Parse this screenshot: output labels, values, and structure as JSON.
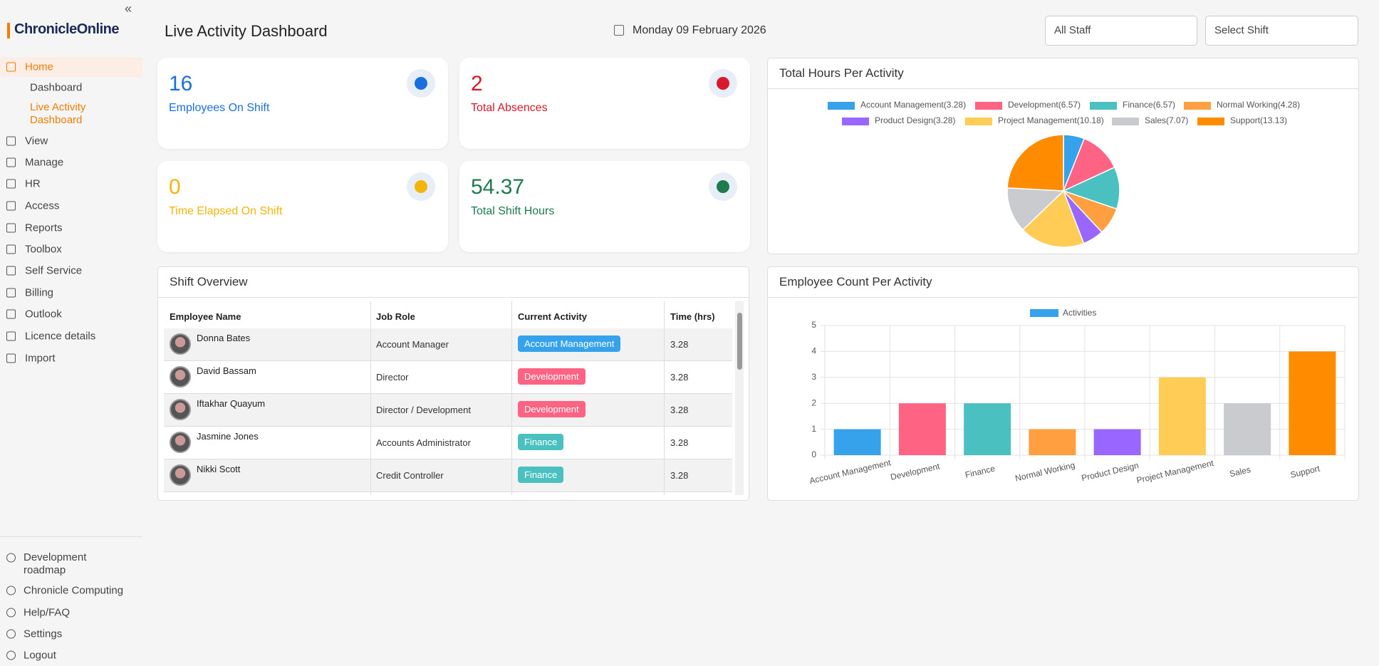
{
  "sidebar": {
    "logo": "ChronicleOnline",
    "nav": [
      "Home",
      "View",
      "Manage",
      "HR",
      "Access",
      "Reports",
      "Toolbox",
      "Self Service",
      "Billing",
      "Outlook",
      "Licence details",
      "Import"
    ],
    "home_children": [
      "Dashboard",
      "Live Activity Dashboard"
    ],
    "bottom": [
      "Development roadmap",
      "Chronicle Computing",
      "Help/FAQ",
      "Settings",
      "Logout"
    ]
  },
  "header": {
    "title": "Live Activity Dashboard",
    "date": "Monday 09 February 2026",
    "filters": [
      "All Staff",
      "Select Shift"
    ]
  },
  "cards": [
    {
      "value": 16,
      "label": "Employees On Shift"
    },
    {
      "value": 2,
      "label": "Total Absences"
    },
    {
      "value": 0,
      "label": "Time Elapsed On Shift"
    },
    {
      "value": 54.37,
      "label": "Total Shift Hours"
    }
  ],
  "shift_overview": {
    "title": "Shift Overview",
    "columns": [
      "Employee Name",
      "Job Role",
      "Current Activity",
      "Time (hrs)"
    ],
    "rows": [
      [
        "Donna Bates",
        "Account Manager",
        "Account Management",
        "3.28"
      ],
      [
        "David Bassam",
        "Director",
        "Development",
        "3.28"
      ],
      [
        "Iftakhar Quayum",
        "Director / Development",
        "Development",
        "3.28"
      ],
      [
        "Jasmine Jones",
        "Accounts Administrator",
        "Finance",
        "3.28"
      ],
      [
        "Nikki Scott",
        "Credit Controller",
        "Finance",
        "3.28"
      ]
    ]
  },
  "pie_chart": {
    "type": "pie",
    "title": "Total Hours Per Activity",
    "labels": [
      "Account Management(3.28)",
      "Development(6.57)",
      "Finance(6.57)",
      "Normal Working(4.28)",
      "Product Design(3.28)",
      "Project Management(10.18)",
      "Sales(7.07)",
      "Support(13.13)"
    ],
    "values": [
      3.28,
      6.57,
      6.57,
      4.28,
      3.28,
      10.18,
      7.07,
      13.13
    ],
    "colors": [
      "#36a2eb",
      "#ff6384",
      "#4bc0c0",
      "#ff9f40",
      "#9966ff",
      "#ffcd56",
      "#c9cbcf",
      "#ff8c00"
    ]
  },
  "bar_chart": {
    "type": "bar",
    "title": "Employee Count Per Activity",
    "categories": [
      "Account Management",
      "Development",
      "Finance",
      "Normal Working",
      "Product Design",
      "Project Management",
      "Sales",
      "Support"
    ],
    "series": [
      {
        "name": "Activities",
        "color": "#36a2eb",
        "values": [
          1,
          2,
          2,
          1,
          1,
          3,
          2,
          4
        ]
      }
    ],
    "colors": [
      "#36a2eb",
      "#ff6384",
      "#4bc0c0",
      "#ff9f40",
      "#9966ff",
      "#ffcd56",
      "#c9cbcf",
      "#ff8c00"
    ],
    "ylim": [
      0,
      5
    ],
    "yticks": [
      0,
      1,
      2,
      3,
      4,
      5
    ],
    "grid": true
  }
}
